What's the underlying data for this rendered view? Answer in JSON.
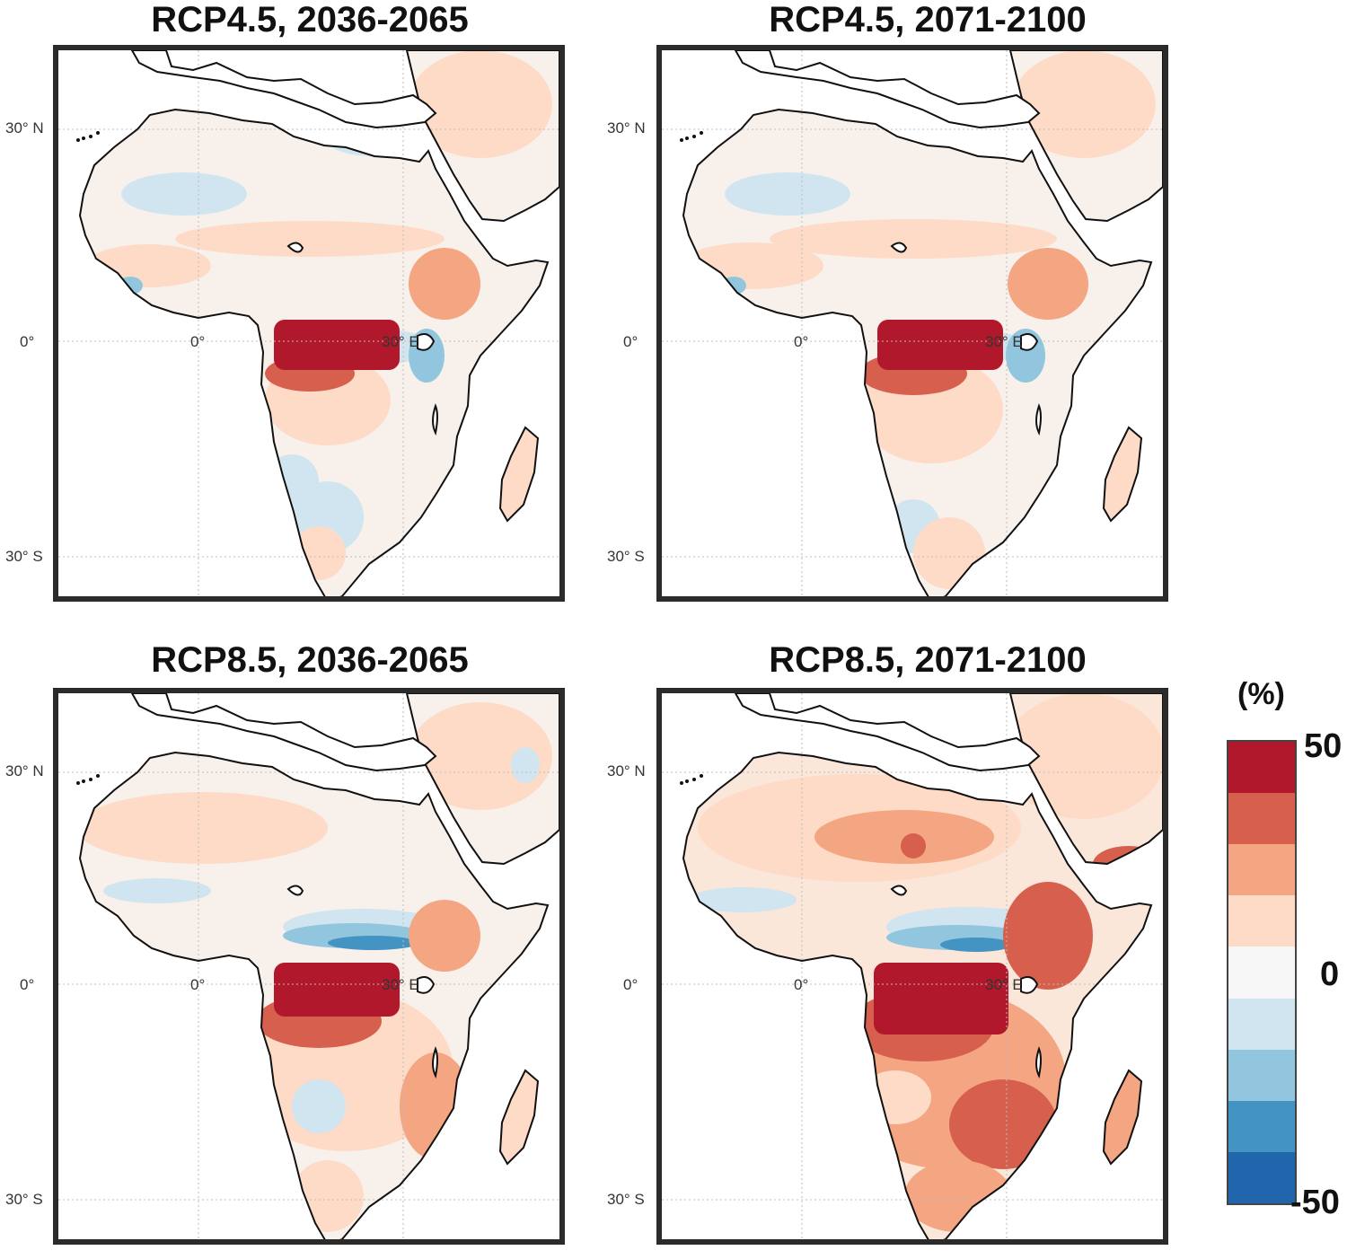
{
  "panels": [
    {
      "title": "RCP4.5, 2036-2065",
      "scenario": "rcp45_mid"
    },
    {
      "title": "RCP4.5, 2071-2100",
      "scenario": "rcp45_late"
    },
    {
      "title": "RCP8.5, 2036-2065",
      "scenario": "rcp85_mid"
    },
    {
      "title": "RCP8.5, 2071-2100",
      "scenario": "rcp85_late"
    }
  ],
  "axis_labels": {
    "lat_30n": "30° N",
    "lat_0": "0°",
    "lat_30s": "30° S",
    "lon_0": "0°",
    "lon_30e": "30° E"
  },
  "colorbar": {
    "unit": "(%)",
    "max_label": "50",
    "mid_label": "0",
    "min_label": "-50",
    "colors": [
      "#b2182b",
      "#d6604d",
      "#f4a582",
      "#fddbc7",
      "#f7f7f7",
      "#d1e5f0",
      "#92c5de",
      "#4393c3",
      "#2166ac"
    ]
  },
  "map_colors": {
    "land_base": "#f7f7f7",
    "light_red": "#fddbc7",
    "mid_red": "#f4a582",
    "dark_red": "#d6604d",
    "deep_red": "#b2182b",
    "light_blue": "#d1e5f0",
    "mid_blue": "#92c5de",
    "dark_blue": "#4393c3",
    "coast": "#111111",
    "grid": "#bdbdbd"
  }
}
